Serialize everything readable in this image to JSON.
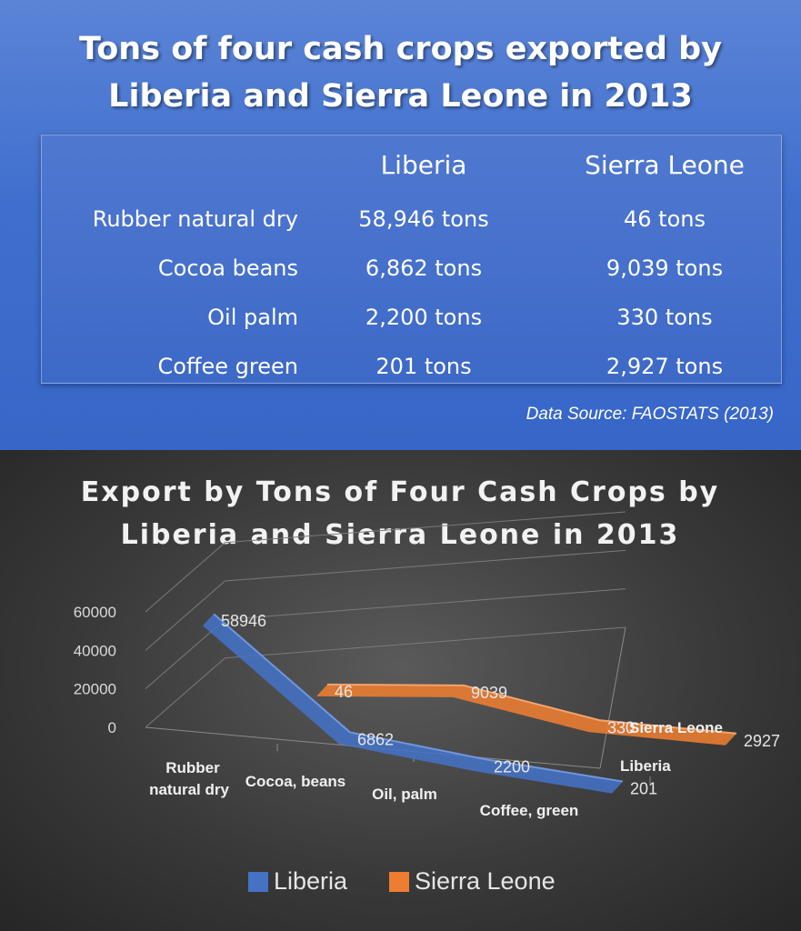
{
  "infographic": {
    "title_line1": "Tons of four cash crops exported by",
    "title_line2": "Liberia and Sierra Leone in 2013",
    "table": {
      "headers": [
        "Liberia",
        "Sierra Leone"
      ],
      "rows": [
        {
          "label": "Rubber natural dry",
          "liberia": "58,946 tons",
          "sierra_leone": "46 tons"
        },
        {
          "label": "Cocoa beans",
          "liberia": "6,862 tons",
          "sierra_leone": "9,039 tons"
        },
        {
          "label": "Oil palm",
          "liberia": "2,200 tons",
          "sierra_leone": "330 tons"
        },
        {
          "label": "Coffee green",
          "liberia": "201 tons",
          "sierra_leone": "2,927 tons"
        }
      ]
    },
    "source": "Data Source: FAOSTATS (2013)",
    "colors": {
      "top_panel": "#3f6fce",
      "liberia": "#4472c4",
      "sierra_leone": "#ed7d31"
    }
  },
  "chart_data": {
    "type": "line",
    "title": "Export by Tons of Four Cash Crops by Liberia and Sierra Leone in 2013",
    "title_line1": "Export by Tons of Four Cash Crops by",
    "title_line2": "Liberia and Sierra Leone in 2013",
    "style": "3d-ribbon",
    "categories": [
      "Rubber natural dry",
      "Cocoa, beans",
      "Oil, palm",
      "Coffee, green"
    ],
    "series": [
      {
        "name": "Liberia",
        "values": [
          58946,
          6862,
          2200,
          201
        ],
        "color": "#4472c4"
      },
      {
        "name": "Sierra Leone",
        "values": [
          46,
          9039,
          330,
          2927
        ],
        "color": "#ed7d31"
      }
    ],
    "data_labels": {
      "Liberia": [
        "58946",
        "6862",
        "2200",
        "201"
      ],
      "Sierra Leone": [
        "46",
        "9039",
        "330",
        "2927"
      ]
    },
    "y_ticks": [
      "0",
      "20000",
      "40000",
      "60000"
    ],
    "ylim": [
      0,
      60000
    ],
    "series_axis": [
      "Sierra Leone",
      "Liberia"
    ],
    "legend": {
      "position": "bottom",
      "items": [
        "Liberia",
        "Sierra Leone"
      ]
    },
    "grid": true
  }
}
